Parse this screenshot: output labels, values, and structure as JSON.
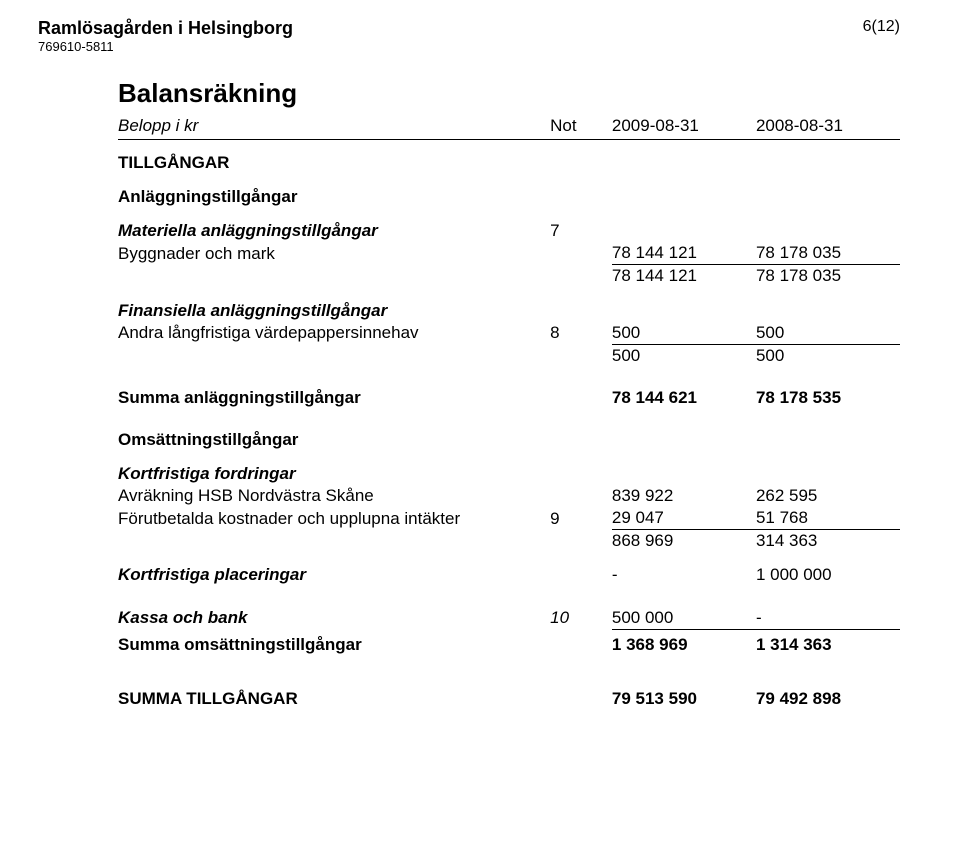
{
  "header": {
    "org_name": "Ramlösagården i Helsingborg",
    "org_number": "769610-5811",
    "page_indicator": "6(12)"
  },
  "title": "Balansräkning",
  "columns": {
    "label": "Belopp i kr",
    "note": "Not",
    "col1": "2009-08-31",
    "col2": "2008-08-31"
  },
  "sections": {
    "tillgangar": "TILLGÅNGAR",
    "anlaggning": "Anläggningstillgångar",
    "materiella": "Materiella anläggningstillgångar",
    "finansiella": "Finansiella anläggningstillgångar",
    "omsattning": "Omsättningstillgångar",
    "kortfordr": "Kortfristiga fordringar"
  },
  "rows": {
    "byggnader": {
      "label": "Byggnader och mark",
      "note": "7",
      "v1": "78 144 121",
      "v2": "78 178 035"
    },
    "materiella_sum": {
      "v1": "78 144 121",
      "v2": "78 178 035"
    },
    "andra_lang": {
      "label": "Andra långfristiga värdepappersinnehav",
      "note": "8",
      "v1": "500",
      "v2": "500"
    },
    "finansiella_sum": {
      "v1": "500",
      "v2": "500"
    },
    "summa_anlaggning": {
      "label": "Summa anläggningstillgångar",
      "v1": "78 144 621",
      "v2": "78 178 535"
    },
    "avrakning": {
      "label": "Avräkning HSB Nordvästra Skåne",
      "v1": "839 922",
      "v2": "262 595"
    },
    "forutbet": {
      "label": "Förutbetalda kostnader och upplupna intäkter",
      "note": "9",
      "v1": "29 047",
      "v2": "51 768"
    },
    "kortfordr_sum": {
      "v1": "868 969",
      "v2": "314 363"
    },
    "kort_plac": {
      "label": "Kortfristiga placeringar",
      "v1": "-",
      "v2": "1 000 000"
    },
    "kassa": {
      "label": "Kassa och bank",
      "note": "10",
      "v1": "500 000",
      "v2": "-"
    },
    "summa_oms": {
      "label": "Summa omsättningstillgångar",
      "v1": "1 368 969",
      "v2": "1 314 363"
    },
    "summa_tillg": {
      "label": "SUMMA TILLGÅNGAR",
      "v1": "79 513 590",
      "v2": "79 492 898"
    }
  }
}
